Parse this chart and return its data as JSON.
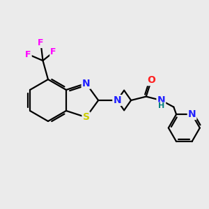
{
  "bg_color": "#ebebeb",
  "atom_colors": {
    "C": "#000000",
    "N": "#2020ff",
    "O": "#ff2020",
    "S": "#cccc00",
    "F": "#ff00ff",
    "H": "#008080"
  },
  "bond_color": "#000000",
  "bond_width": 1.6
}
